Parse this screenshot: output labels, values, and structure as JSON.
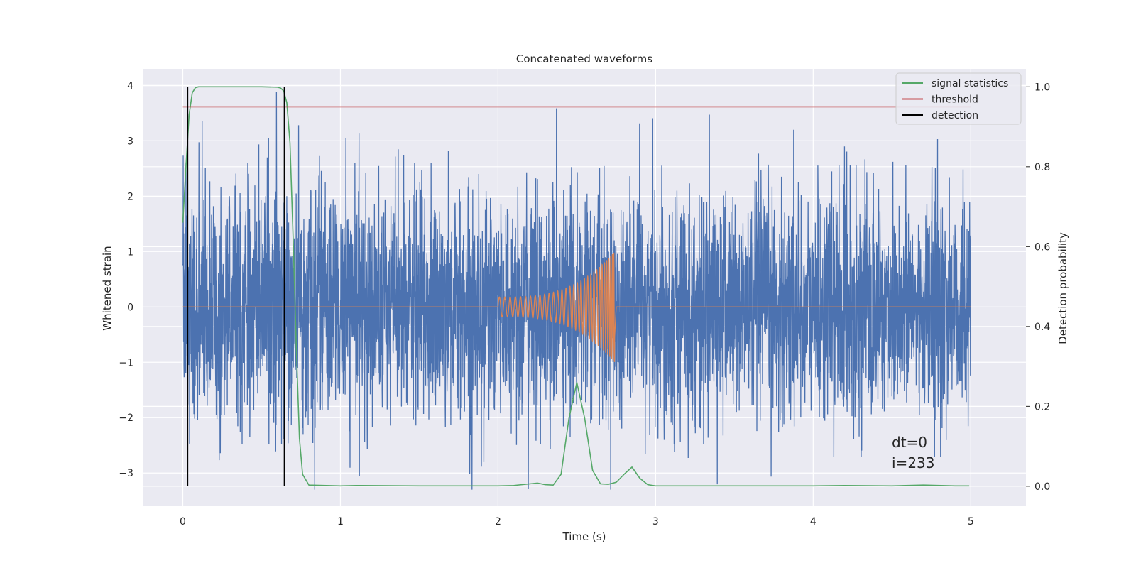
{
  "chart_data": {
    "type": "line",
    "title": "Concatenated waveforms",
    "xlabel": "Time (s)",
    "ylabel": "Whitened strain",
    "ylabel_right": "Detection probability",
    "xlim": [
      -0.25,
      5.35
    ],
    "ylim": [
      -3.6,
      4.3
    ],
    "ylim_right": [
      -0.05,
      1.045
    ],
    "x_ticks": [
      0,
      1,
      2,
      3,
      4,
      5
    ],
    "y_ticks": [
      -3,
      -2,
      -1,
      0,
      1,
      2,
      3,
      4
    ],
    "y_ticks_right": [
      0.0,
      0.2,
      0.4,
      0.6,
      0.8,
      1.0
    ],
    "x_tick_labels": [
      "0",
      "1",
      "2",
      "3",
      "4",
      "5"
    ],
    "y_tick_labels": [
      "−3",
      "−2",
      "−1",
      "0",
      "1",
      "2",
      "3",
      "4"
    ],
    "y_tick_labels_right": [
      "0.0",
      "0.2",
      "0.4",
      "0.6",
      "0.8",
      "1.0"
    ],
    "grid": true,
    "legend_position": "top-right",
    "legend": [
      {
        "label": "signal statistics",
        "color": "#55a868"
      },
      {
        "label": "threshold",
        "color": "#c44e52"
      },
      {
        "label": "detection",
        "color": "#000000"
      }
    ],
    "series": [
      {
        "name": "strain",
        "axis": "left",
        "color": "#4c72b0",
        "kind": "noise",
        "x_range": [
          0,
          5
        ],
        "typical_amplitude": 1.2,
        "peak_max": 3.95,
        "peak_min": -3.3
      },
      {
        "name": "template",
        "axis": "left",
        "color": "#dd8452",
        "kind": "chirp",
        "x_range": [
          2.0,
          2.74
        ],
        "amplitude_start": 0.18,
        "amplitude_end": 1.0,
        "baseline": 0
      },
      {
        "name": "signal statistics",
        "axis": "right",
        "color": "#55a868",
        "x": [
          0,
          0.02,
          0.04,
          0.06,
          0.08,
          0.1,
          0.15,
          0.3,
          0.5,
          0.6,
          0.62,
          0.64,
          0.66,
          0.68,
          0.7,
          0.72,
          0.74,
          0.76,
          0.8,
          1.0,
          1.1,
          1.5,
          2.0,
          2.1,
          2.2,
          2.25,
          2.3,
          2.35,
          2.4,
          2.45,
          2.5,
          2.55,
          2.6,
          2.65,
          2.7,
          2.75,
          2.8,
          2.85,
          2.9,
          2.95,
          3.0,
          3.5,
          4.0,
          4.2,
          4.5,
          4.7,
          4.9,
          4.99
        ],
        "y": [
          0.66,
          0.8,
          0.93,
          0.985,
          0.998,
          1.0,
          1.0,
          1.0,
          1.0,
          0.999,
          0.997,
          0.99,
          0.96,
          0.86,
          0.62,
          0.35,
          0.12,
          0.03,
          0.003,
          0.001,
          0.002,
          0.001,
          0.001,
          0.002,
          0.006,
          0.008,
          0.004,
          0.003,
          0.03,
          0.17,
          0.26,
          0.17,
          0.04,
          0.006,
          0.005,
          0.01,
          0.03,
          0.048,
          0.02,
          0.004,
          0.001,
          0.001,
          0.001,
          0.002,
          0.001,
          0.003,
          0.001,
          0.001
        ]
      },
      {
        "name": "threshold",
        "axis": "right",
        "color": "#c44e52",
        "x": [
          0,
          5
        ],
        "y": [
          0.95,
          0.95
        ]
      },
      {
        "name": "detection",
        "axis": "right",
        "color": "#000000",
        "kind": "vlines",
        "x": [
          0.03,
          0.645
        ],
        "y_range": [
          0.0,
          1.0
        ]
      }
    ],
    "annotations": [
      "dt=0",
      "i=233"
    ]
  }
}
